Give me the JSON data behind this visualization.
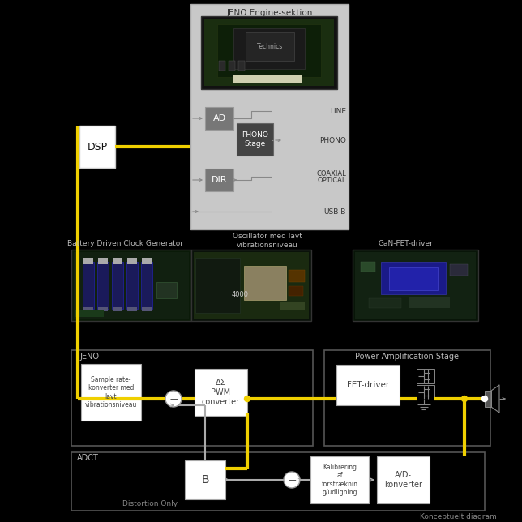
{
  "bg_color": "#000000",
  "yellow": "#f0d000",
  "light_gray_bg": "#c8c8c8",
  "gray_box": "#777777",
  "dark_gray_box": "#444444",
  "white_box": "#ffffff",
  "gray_line": "#888888",
  "mid_gray_line": "#aaaaaa",
  "text_dark": "#333333",
  "text_white": "#ffffff",
  "text_light": "#bbbbbb",
  "text_dim": "#888888",
  "border_dark": "#444444",
  "border_mid": "#666666",
  "title_top": "JENO Engine-sektion",
  "label_line": "LINE",
  "label_phono": "PHONO",
  "label_coaxial": "COAXIAL",
  "label_optical": "OPTICAL",
  "label_usb": "USB-B",
  "label_dsp": "DSP",
  "label_ad": "AD",
  "label_phono_stage": "PHONO\nStage",
  "label_dir": "DIR",
  "label_battery": "Battery Driven Clock Generator",
  "label_oscillator": "Oscillator med lavt\nvibrationsniveau",
  "label_gan": "GaN-FET-driver",
  "label_jeno": "JENO",
  "label_sample": "Sample rate-\nkonverter med\nlavt\nvibrationsniveau",
  "label_pwm": "ΔΣ\nPWM\nconverter",
  "label_power": "Power Amplification Stage",
  "label_fet": "FET-driver",
  "label_adct": "ADCT",
  "label_b": "B",
  "label_kal": "Kalibrering\naf\nforstræknin\ng/udligning",
  "label_adc": "A/D-\nkonverter",
  "label_distortion": "Distortion Only",
  "label_konceptuelt": "Konceptuelt diagram"
}
